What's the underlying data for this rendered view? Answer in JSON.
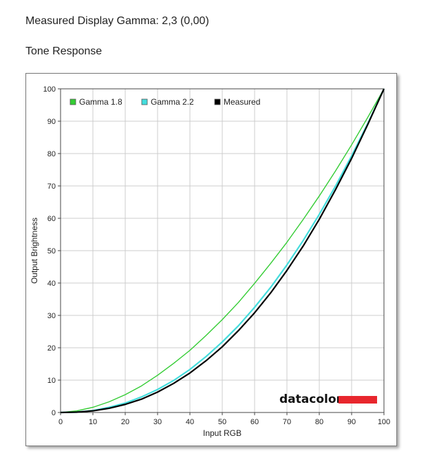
{
  "header": {
    "measured_gamma": "Measured Display Gamma: 2,3 (0,00)",
    "section_title": "Tone Response"
  },
  "brand": {
    "name": "datacolor",
    "bar_color": "#e8262d"
  },
  "chart_data": {
    "type": "line",
    "xlabel": "Input RGB",
    "ylabel": "Output Brightness",
    "xlim": [
      0,
      100
    ],
    "ylim": [
      0,
      100
    ],
    "xticks": [
      0,
      10,
      20,
      30,
      40,
      50,
      60,
      70,
      80,
      90,
      100
    ],
    "yticks": [
      0,
      10,
      20,
      30,
      40,
      50,
      60,
      70,
      80,
      90,
      100
    ],
    "grid": true,
    "legend_position": "top-left",
    "x": [
      0,
      5,
      10,
      15,
      20,
      25,
      30,
      35,
      40,
      45,
      50,
      55,
      60,
      65,
      70,
      75,
      80,
      85,
      90,
      95,
      100
    ],
    "series": [
      {
        "name": "Gamma 1.8",
        "color": "#33cc33",
        "values": [
          0,
          0.5,
          1.6,
          3.3,
          5.5,
          8.2,
          11.5,
          15.2,
          19.2,
          23.8,
          28.7,
          34.0,
          39.9,
          46.1,
          52.6,
          59.6,
          66.9,
          74.6,
          82.7,
          91.2,
          100
        ]
      },
      {
        "name": "Gamma 2.2",
        "color": "#44dddd",
        "values": [
          0,
          0.1,
          0.6,
          1.6,
          2.9,
          4.8,
          7.1,
          9.9,
          13.3,
          17.3,
          21.8,
          26.8,
          32.5,
          38.7,
          45.6,
          53.1,
          61.2,
          69.9,
          79.3,
          89.3,
          100
        ]
      },
      {
        "name": "Measured",
        "color": "#000000",
        "values": [
          0,
          0.1,
          0.5,
          1.3,
          2.5,
          4.1,
          6.3,
          9.0,
          12.2,
          16.0,
          20.3,
          25.3,
          30.8,
          37.0,
          43.9,
          51.4,
          59.7,
          68.8,
          78.5,
          89.0,
          100
        ]
      }
    ]
  }
}
